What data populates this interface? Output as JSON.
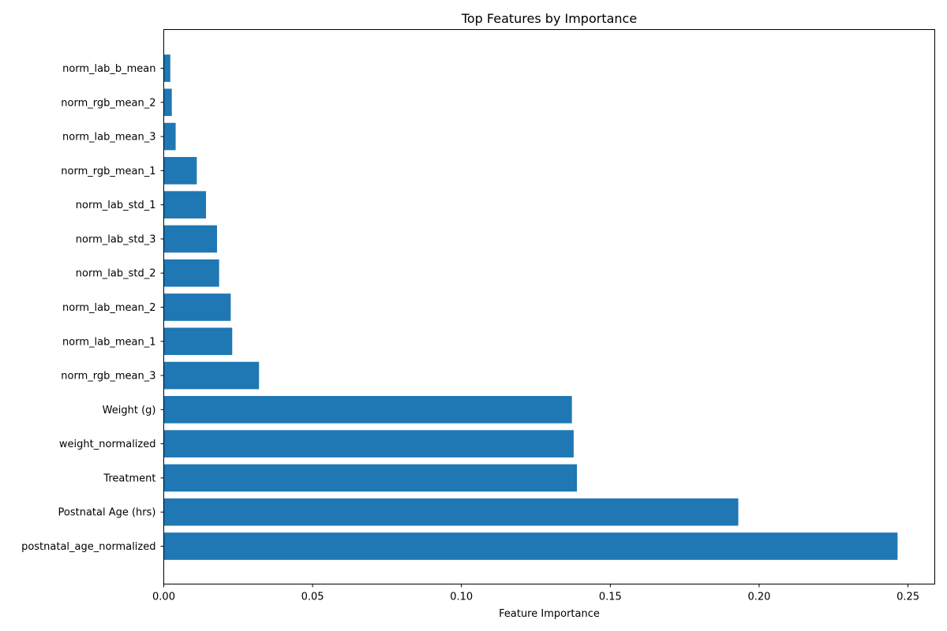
{
  "chart_data": {
    "type": "bar",
    "orientation": "horizontal",
    "title": "Top Features by Importance",
    "xlabel": "Feature Importance",
    "ylabel": "",
    "xlim": [
      0,
      0.259
    ],
    "xticks": [
      0.0,
      0.05,
      0.1,
      0.15,
      0.2,
      0.25
    ],
    "xtick_labels": [
      "0.00",
      "0.05",
      "0.10",
      "0.15",
      "0.20",
      "0.25"
    ],
    "grid": false,
    "bar_color": "#1f77b4",
    "categories": [
      "postnatal_age_normalized",
      "Postnatal Age (hrs)",
      "Treatment",
      "weight_normalized",
      "Weight (g)",
      "norm_rgb_mean_3",
      "norm_lab_mean_1",
      "norm_lab_mean_2",
      "norm_lab_std_2",
      "norm_lab_std_3",
      "norm_lab_std_1",
      "norm_rgb_mean_1",
      "norm_lab_mean_3",
      "norm_rgb_mean_2",
      "norm_lab_b_mean"
    ],
    "values": [
      0.2465,
      0.193,
      0.1388,
      0.1377,
      0.1371,
      0.032,
      0.023,
      0.0225,
      0.0186,
      0.0179,
      0.0142,
      0.0111,
      0.004,
      0.0027,
      0.0022
    ]
  }
}
